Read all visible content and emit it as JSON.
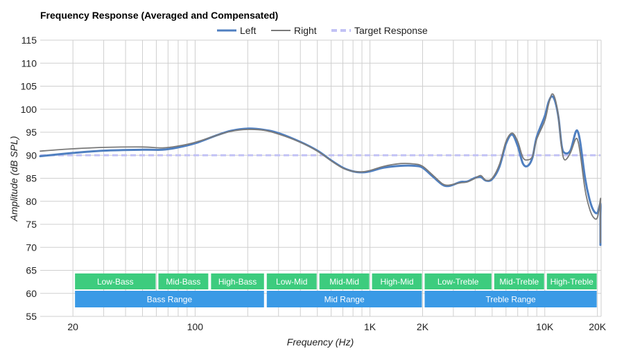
{
  "chart_data": {
    "type": "line",
    "title": "Frequency Response (Averaged and Compensated)",
    "xlabel": "Frequency (Hz)",
    "ylabel": "Amplitude (dB SPL)",
    "x_scale": "log",
    "xlim": [
      13,
      21000
    ],
    "ylim": [
      55,
      115
    ],
    "y_ticks": [
      55,
      60,
      65,
      70,
      75,
      80,
      85,
      90,
      95,
      100,
      105,
      110,
      115
    ],
    "x_tick_labels": [
      {
        "value": 20,
        "label": "20"
      },
      {
        "value": 100,
        "label": "100"
      },
      {
        "value": 1000,
        "label": "1K"
      },
      {
        "value": 2000,
        "label": "2K"
      },
      {
        "value": 10000,
        "label": "10K"
      },
      {
        "value": 20000,
        "label": "20K"
      }
    ],
    "x_gridlines": [
      20,
      30,
      40,
      50,
      60,
      70,
      80,
      90,
      100,
      200,
      300,
      400,
      500,
      600,
      700,
      800,
      900,
      1000,
      2000,
      3000,
      4000,
      5000,
      6000,
      7000,
      8000,
      9000,
      10000,
      20000
    ],
    "grid": true,
    "legend_position": "top-center",
    "series": [
      {
        "name": "Left",
        "color": "#4f7fc0",
        "style": "solid",
        "points": [
          [
            13,
            89.8
          ],
          [
            20,
            90.5
          ],
          [
            30,
            91.0
          ],
          [
            50,
            91.2
          ],
          [
            65,
            91.2
          ],
          [
            80,
            91.7
          ],
          [
            100,
            92.6
          ],
          [
            130,
            94.2
          ],
          [
            160,
            95.3
          ],
          [
            200,
            95.8
          ],
          [
            250,
            95.5
          ],
          [
            300,
            94.8
          ],
          [
            400,
            92.9
          ],
          [
            500,
            91.0
          ],
          [
            600,
            88.9
          ],
          [
            700,
            87.3
          ],
          [
            800,
            86.5
          ],
          [
            900,
            86.3
          ],
          [
            1000,
            86.5
          ],
          [
            1200,
            87.3
          ],
          [
            1500,
            87.7
          ],
          [
            1800,
            87.7
          ],
          [
            2000,
            87.3
          ],
          [
            2300,
            85.3
          ],
          [
            2600,
            83.6
          ],
          [
            2800,
            83.3
          ],
          [
            3000,
            83.6
          ],
          [
            3300,
            84.2
          ],
          [
            3600,
            84.3
          ],
          [
            4000,
            85.1
          ],
          [
            4300,
            85.3
          ],
          [
            4600,
            84.5
          ],
          [
            5000,
            84.8
          ],
          [
            5500,
            87.5
          ],
          [
            6000,
            92.5
          ],
          [
            6500,
            94.5
          ],
          [
            7000,
            92.0
          ],
          [
            7500,
            88.2
          ],
          [
            8000,
            87.7
          ],
          [
            8500,
            89.5
          ],
          [
            9000,
            94.0
          ],
          [
            10000,
            98.5
          ],
          [
            10500,
            101.5
          ],
          [
            11000,
            102.8
          ],
          [
            11500,
            101.5
          ],
          [
            12000,
            98.0
          ],
          [
            12500,
            92.0
          ],
          [
            13000,
            90.5
          ],
          [
            14000,
            91.0
          ],
          [
            15000,
            95.0
          ],
          [
            15500,
            95.0
          ],
          [
            16000,
            92.5
          ],
          [
            17000,
            85.0
          ],
          [
            18000,
            80.5
          ],
          [
            19000,
            78.0
          ],
          [
            20000,
            77.5
          ],
          [
            21000,
            79.5
          ],
          [
            22000,
            76.5
          ],
          [
            23000,
            70.5
          ]
        ]
      },
      {
        "name": "Right",
        "color": "#7a7a7a",
        "style": "solid",
        "points": [
          [
            13,
            90.9
          ],
          [
            20,
            91.4
          ],
          [
            30,
            91.7
          ],
          [
            50,
            91.8
          ],
          [
            65,
            91.6
          ],
          [
            80,
            92.0
          ],
          [
            100,
            92.8
          ],
          [
            130,
            94.2
          ],
          [
            160,
            95.2
          ],
          [
            200,
            95.6
          ],
          [
            250,
            95.4
          ],
          [
            300,
            94.6
          ],
          [
            400,
            92.8
          ],
          [
            500,
            90.9
          ],
          [
            600,
            88.8
          ],
          [
            700,
            87.2
          ],
          [
            800,
            86.5
          ],
          [
            900,
            86.4
          ],
          [
            1000,
            86.7
          ],
          [
            1200,
            87.6
          ],
          [
            1500,
            88.2
          ],
          [
            1800,
            88.1
          ],
          [
            2000,
            87.6
          ],
          [
            2300,
            85.6
          ],
          [
            2600,
            83.8
          ],
          [
            2800,
            83.5
          ],
          [
            3000,
            83.7
          ],
          [
            3300,
            84.0
          ],
          [
            3600,
            84.2
          ],
          [
            4000,
            85.0
          ],
          [
            4300,
            85.6
          ],
          [
            4600,
            84.6
          ],
          [
            5000,
            85.0
          ],
          [
            5500,
            88.0
          ],
          [
            6000,
            93.0
          ],
          [
            6500,
            94.8
          ],
          [
            7000,
            93.0
          ],
          [
            7500,
            89.5
          ],
          [
            8000,
            89.0
          ],
          [
            8500,
            89.8
          ],
          [
            9000,
            93.5
          ],
          [
            10000,
            97.5
          ],
          [
            10500,
            101.0
          ],
          [
            11000,
            103.3
          ],
          [
            11500,
            102.0
          ],
          [
            12000,
            98.0
          ],
          [
            12500,
            91.5
          ],
          [
            13000,
            89.0
          ],
          [
            14000,
            90.5
          ],
          [
            15000,
            93.5
          ],
          [
            15500,
            93.0
          ],
          [
            16000,
            90.0
          ],
          [
            17000,
            82.5
          ],
          [
            18000,
            78.5
          ],
          [
            19000,
            76.5
          ],
          [
            20000,
            76.5
          ],
          [
            21000,
            80.5
          ],
          [
            22000,
            79.0
          ],
          [
            23000,
            71.0
          ]
        ]
      },
      {
        "name": "Target Response",
        "color": "#c2c2f5",
        "style": "dashed",
        "points": [
          [
            13,
            90
          ],
          [
            23000,
            90
          ]
        ]
      }
    ],
    "ranges": [
      {
        "row": 1,
        "label": "Low-Bass",
        "from": 20,
        "to": 60,
        "color": "#3dcc7e"
      },
      {
        "row": 1,
        "label": "Mid-Bass",
        "from": 60,
        "to": 120,
        "color": "#3dcc7e"
      },
      {
        "row": 1,
        "label": "High-Bass",
        "from": 120,
        "to": 250,
        "color": "#3dcc7e"
      },
      {
        "row": 1,
        "label": "Low-Mid",
        "from": 250,
        "to": 500,
        "color": "#3dcc7e"
      },
      {
        "row": 1,
        "label": "Mid-Mid",
        "from": 500,
        "to": 1000,
        "color": "#3dcc7e"
      },
      {
        "row": 1,
        "label": "High-Mid",
        "from": 1000,
        "to": 2000,
        "color": "#3dcc7e"
      },
      {
        "row": 1,
        "label": "Low-Treble",
        "from": 2000,
        "to": 5000,
        "color": "#3dcc7e"
      },
      {
        "row": 1,
        "label": "Mid-Treble",
        "from": 5000,
        "to": 10000,
        "color": "#3dcc7e"
      },
      {
        "row": 1,
        "label": "High-Treble",
        "from": 10000,
        "to": 20000,
        "color": "#3dcc7e"
      },
      {
        "row": 2,
        "label": "Bass Range",
        "from": 20,
        "to": 250,
        "color": "#3a9ae6"
      },
      {
        "row": 2,
        "label": "Mid Range",
        "from": 250,
        "to": 2000,
        "color": "#3a9ae6"
      },
      {
        "row": 2,
        "label": "Treble Range",
        "from": 2000,
        "to": 20000,
        "color": "#3a9ae6"
      }
    ]
  }
}
